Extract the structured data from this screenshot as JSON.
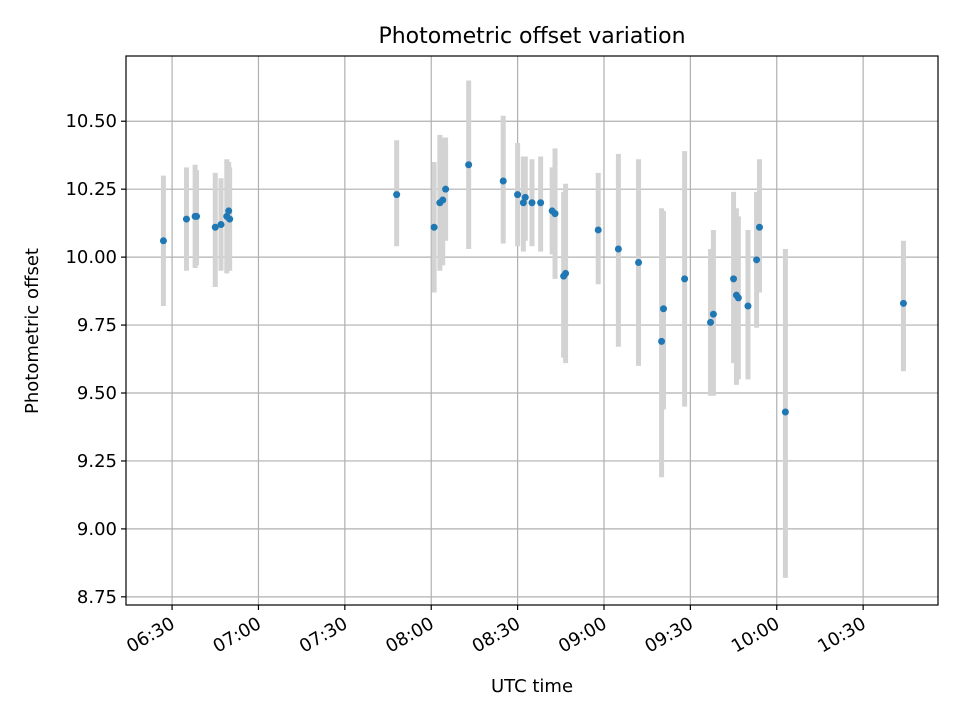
{
  "chart_data": {
    "type": "scatter",
    "title": "Photometric offset variation",
    "xlabel": "UTC time",
    "ylabel": "Photometric offset",
    "xlim": [
      "06:14",
      "10:56"
    ],
    "ylim": [
      8.72,
      10.74
    ],
    "x_ticks": [
      "06:30",
      "07:00",
      "07:30",
      "08:00",
      "08:30",
      "09:00",
      "09:30",
      "10:00",
      "10:30"
    ],
    "y_ticks": [
      "8.75",
      "9.00",
      "9.25",
      "9.50",
      "9.75",
      "10.00",
      "10.25",
      "10.50"
    ],
    "grid": true,
    "legend": "none",
    "colors": {
      "point": "#1f77b4",
      "errorbar": "#d3d3d3",
      "grid": "#b0b0b0",
      "axes": "#000000"
    },
    "series": [
      {
        "points": [
          {
            "t": "06:27",
            "y": 10.06,
            "lo": 9.82,
            "hi": 10.3
          },
          {
            "t": "06:35",
            "y": 10.14,
            "lo": 9.95,
            "hi": 10.33
          },
          {
            "t": "06:38",
            "y": 10.15,
            "lo": 9.96,
            "hi": 10.34
          },
          {
            "t": "06:38:30",
            "y": 10.15,
            "lo": 9.97,
            "hi": 10.32
          },
          {
            "t": "06:45",
            "y": 10.11,
            "lo": 9.89,
            "hi": 10.31
          },
          {
            "t": "06:47",
            "y": 10.12,
            "lo": 9.95,
            "hi": 10.29
          },
          {
            "t": "06:49",
            "y": 10.15,
            "lo": 9.94,
            "hi": 10.36
          },
          {
            "t": "06:49:40",
            "y": 10.17,
            "lo": 9.99,
            "hi": 10.35
          },
          {
            "t": "06:50",
            "y": 10.14,
            "lo": 9.95,
            "hi": 10.33
          },
          {
            "t": "07:48",
            "y": 10.23,
            "lo": 10.04,
            "hi": 10.43
          },
          {
            "t": "08:01",
            "y": 10.11,
            "lo": 9.87,
            "hi": 10.35
          },
          {
            "t": "08:03",
            "y": 10.2,
            "lo": 9.95,
            "hi": 10.45
          },
          {
            "t": "08:04",
            "y": 10.21,
            "lo": 9.97,
            "hi": 10.44
          },
          {
            "t": "08:05",
            "y": 10.25,
            "lo": 10.06,
            "hi": 10.44
          },
          {
            "t": "08:13",
            "y": 10.34,
            "lo": 10.03,
            "hi": 10.65
          },
          {
            "t": "08:25",
            "y": 10.28,
            "lo": 10.05,
            "hi": 10.52
          },
          {
            "t": "08:30",
            "y": 10.23,
            "lo": 10.04,
            "hi": 10.42
          },
          {
            "t": "08:32",
            "y": 10.2,
            "lo": 10.02,
            "hi": 10.37
          },
          {
            "t": "08:32:40",
            "y": 10.22,
            "lo": 10.06,
            "hi": 10.37
          },
          {
            "t": "08:35",
            "y": 10.2,
            "lo": 10.04,
            "hi": 10.36
          },
          {
            "t": "08:38",
            "y": 10.2,
            "lo": 10.02,
            "hi": 10.37
          },
          {
            "t": "08:42",
            "y": 10.17,
            "lo": 10.01,
            "hi": 10.33
          },
          {
            "t": "08:43",
            "y": 10.16,
            "lo": 9.92,
            "hi": 10.4
          },
          {
            "t": "08:46",
            "y": 9.93,
            "lo": 9.63,
            "hi": 10.24
          },
          {
            "t": "08:46:40",
            "y": 9.94,
            "lo": 9.61,
            "hi": 10.27
          },
          {
            "t": "08:58",
            "y": 10.1,
            "lo": 9.9,
            "hi": 10.31
          },
          {
            "t": "09:05",
            "y": 10.03,
            "lo": 9.67,
            "hi": 10.38
          },
          {
            "t": "09:12",
            "y": 9.98,
            "lo": 9.6,
            "hi": 10.36
          },
          {
            "t": "09:20",
            "y": 9.69,
            "lo": 9.19,
            "hi": 10.18
          },
          {
            "t": "09:20:40",
            "y": 9.81,
            "lo": 9.44,
            "hi": 10.17
          },
          {
            "t": "09:28",
            "y": 9.92,
            "lo": 9.45,
            "hi": 10.39
          },
          {
            "t": "09:37",
            "y": 9.76,
            "lo": 9.49,
            "hi": 10.03
          },
          {
            "t": "09:38",
            "y": 9.79,
            "lo": 9.49,
            "hi": 10.1
          },
          {
            "t": "09:45",
            "y": 9.92,
            "lo": 9.61,
            "hi": 10.24
          },
          {
            "t": "09:46",
            "y": 9.86,
            "lo": 9.53,
            "hi": 10.18
          },
          {
            "t": "09:46:40",
            "y": 9.85,
            "lo": 9.55,
            "hi": 10.15
          },
          {
            "t": "09:50",
            "y": 9.82,
            "lo": 9.55,
            "hi": 10.1
          },
          {
            "t": "09:53",
            "y": 9.99,
            "lo": 9.74,
            "hi": 10.24
          },
          {
            "t": "09:54",
            "y": 10.11,
            "lo": 9.87,
            "hi": 10.36
          },
          {
            "t": "10:03",
            "y": 9.43,
            "lo": 8.82,
            "hi": 10.03
          },
          {
            "t": "10:44",
            "y": 9.83,
            "lo": 9.58,
            "hi": 10.06
          }
        ]
      }
    ]
  }
}
